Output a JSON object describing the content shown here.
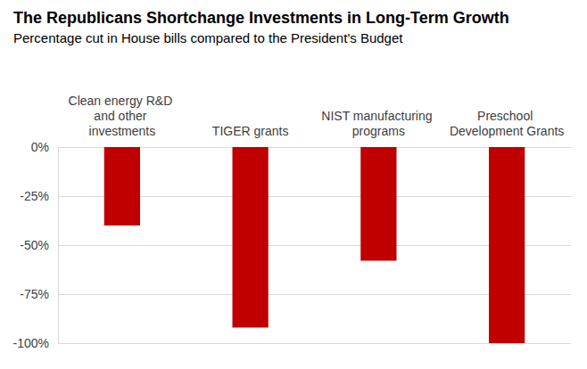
{
  "chart_data": {
    "type": "bar",
    "title": "The Republicans Shortchange Investments in Long-Term Growth",
    "subtitle": "Percentage cut in House bills compared to the President's Budget",
    "categories": [
      "Clean energy R&D and other investments",
      "TIGER grants",
      "NIST manufacturing programs",
      "Preschool Development Grants"
    ],
    "values": [
      -40,
      -92,
      -58,
      -100
    ],
    "color": "#c00000",
    "ylim": [
      -100,
      0
    ],
    "yticks": [
      {
        "value": -100,
        "label": "-100%"
      },
      {
        "value": -75,
        "label": "-75%"
      },
      {
        "value": -50,
        "label": "-50%"
      },
      {
        "value": -25,
        "label": "-25%"
      },
      {
        "value": 0,
        "label": "0%"
      }
    ],
    "grid": true
  }
}
